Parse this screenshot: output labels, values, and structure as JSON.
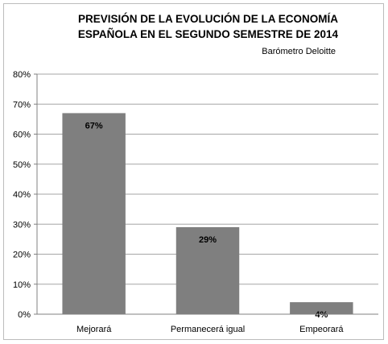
{
  "chart_data": {
    "type": "bar",
    "title_lines": [
      "PREVISIÓN DE LA EVOLUCIÓN DE LA ECONOMÍA",
      "ESPAÑOLA EN EL SEGUNDO SEMESTRE DE 2014"
    ],
    "subtitle": "Barómetro Deloitte",
    "categories": [
      "Mejorará",
      "Permanecerá igual",
      "Empeorará"
    ],
    "values": [
      67,
      29,
      4
    ],
    "data_labels": [
      "67%",
      "29%",
      "4%"
    ],
    "ylim": [
      0,
      80
    ],
    "yticks": [
      0,
      10,
      20,
      30,
      40,
      50,
      60,
      70,
      80
    ],
    "ytick_labels": [
      "0%",
      "10%",
      "20%",
      "30%",
      "40%",
      "50%",
      "60%",
      "70%",
      "80%"
    ],
    "grid": true,
    "bar_color": "#7f7f7f",
    "grid_color": "#a6a6a6"
  }
}
